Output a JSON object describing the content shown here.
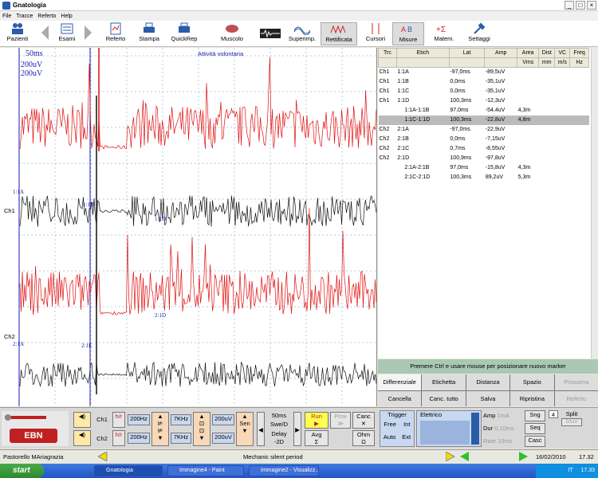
{
  "window": {
    "title": "Gnatologia"
  },
  "menu": [
    "File",
    "Tracce",
    "Referto",
    "Help"
  ],
  "toolbar": [
    {
      "label": "Pazienti",
      "icon": "patients-icon"
    },
    {
      "label": "Esami",
      "icon": "exams-icon"
    },
    {
      "label": "Referto",
      "icon": "report-icon"
    },
    {
      "label": "Stampa",
      "icon": "print-icon"
    },
    {
      "label": "QuickRep",
      "icon": "quickrep-icon"
    },
    {
      "label": "Muscolo",
      "icon": "muscle-icon"
    },
    {
      "label": "Superimp.",
      "icon": "superimp-icon"
    },
    {
      "label": "Rettificata",
      "icon": "rectified-icon"
    },
    {
      "label": "Cursori",
      "icon": "cursors-icon"
    },
    {
      "label": "Misure",
      "icon": "measures-icon"
    },
    {
      "label": "Matem.",
      "icon": "math-icon"
    },
    {
      "label": "Settaggi",
      "icon": "settings-icon"
    }
  ],
  "plot": {
    "timebase": "50ms",
    "gain1": "200uV",
    "gain2": "200uV",
    "mode": "Attività volontaria",
    "ch1": "Ch1",
    "ch2": "Ch2",
    "markers": {
      "m1a": "1:1A",
      "m1b": "1:1B",
      "m1c": "1:1C",
      "m1d": "1:1D",
      "m2a": "2:1A",
      "m2d": "2:1D",
      "m2e": "2:1E"
    }
  },
  "table": {
    "headers": [
      "Trc",
      "Etich",
      "Lat",
      "Amp",
      "Area",
      "Dist",
      "VC",
      "Freq"
    ],
    "units": [
      "",
      "",
      "",
      "",
      "Vms",
      "mm",
      "m/s",
      "Hz"
    ],
    "rows": [
      [
        "Ch1",
        "1:1A",
        "-97,0ms",
        "-89,5uV",
        "",
        "",
        "",
        ""
      ],
      [
        "Ch1",
        "1:1B",
        "0,0ms",
        "-35,1uV",
        "",
        "",
        "",
        ""
      ],
      [
        "Ch1",
        "1:1C",
        "0,0ms",
        "-35,1uV",
        "",
        "",
        "",
        ""
      ],
      [
        "Ch1",
        "1:1D",
        "100,3ms",
        "-12,3uV",
        "",
        "",
        "",
        ""
      ],
      [
        "",
        "1:1A-1:1B",
        "97,0ms",
        "-54,4uV",
        "4,3m",
        "",
        "",
        ""
      ],
      [
        "",
        "1:1C-1:1D",
        "100,3ms",
        "-22,8uV",
        "4,8m",
        "",
        "",
        ""
      ],
      [
        "Ch2",
        "2:1A",
        "-97,0ms",
        "-22,9uV",
        "",
        "",
        "",
        ""
      ],
      [
        "Ch2",
        "2:1B",
        "0,0ms",
        "-7,15uV",
        "",
        "",
        "",
        ""
      ],
      [
        "Ch2",
        "2:1C",
        "0,7ms",
        "-8,55uV",
        "",
        "",
        "",
        ""
      ],
      [
        "Ch2",
        "2:1D",
        "100,9ms",
        "-97,8uV",
        "",
        "",
        "",
        ""
      ],
      [
        "",
        "2:1A-2:1B",
        "97,0ms",
        "-15,8uV",
        "4,3m",
        "",
        "",
        ""
      ],
      [
        "",
        "2:1C-2:1D",
        "100,3ms",
        "89,2uV",
        "5,3m",
        "",
        "",
        ""
      ]
    ]
  },
  "hint": "Premere Ctrl e usare mouse per posizionare nuovo marker",
  "actions": [
    "Differenziale",
    "Etichetta",
    "Distanza",
    "Spazio",
    "Prossima",
    "Cancella",
    "Canc. tutto",
    "Salva",
    "Ripristina",
    "Referto"
  ],
  "controls": {
    "ch1": "Ch1",
    "ch2": "Ch2",
    "hp1": "200Hz",
    "hp2": "200Hz",
    "lp1": "7KHz",
    "lp2": "7KHz",
    "sens1": "200uV",
    "sens2": "200uV",
    "sen": "Sen",
    "timebase": "50ms",
    "swe": "Swe/D",
    "delay": "Delay",
    "delay_val": "-2D",
    "run": "Run",
    "avg": "Avg",
    "proxs": "Prox",
    "canc": "Canc",
    "ohm": "Ohm",
    "trigger": "Trigger",
    "free": "Free",
    "int": "Int",
    "auto": "Auto",
    "ext": "Ext",
    "elettrico": "Elettrico",
    "amp": "Amp",
    "amp_val": "1mA",
    "dur": "Dur",
    "dur_val": "0,10ms",
    "rate": "Rate",
    "rate_val": "10ms",
    "sng": "Sng",
    "seq": "Seq",
    "casc": "Casc",
    "split": "Split",
    "split_val": "50uV",
    "stim_level": "4"
  },
  "status": {
    "patient": "Pastorello MAriagrazia",
    "note": "Mechanic silent period",
    "date": "16/02/2010",
    "time": "17.32"
  },
  "taskbar": {
    "start": "start",
    "tasks": [
      "Gnatologia",
      "Immagine4 - Paint",
      "Immagine2 - Visualizz..."
    ],
    "clock": "17.33",
    "lang": "IT"
  },
  "colors": {
    "trace_red": "#e01010",
    "trace_black": "#111111",
    "marker_blue": "#1a1ab0",
    "accent_green": "#aac8b4"
  }
}
